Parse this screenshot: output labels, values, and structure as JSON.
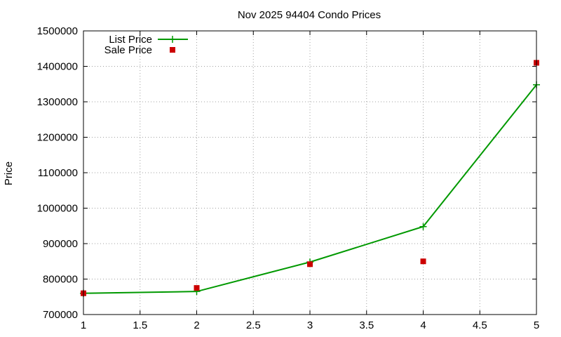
{
  "chart_data": {
    "type": "line",
    "title": "Nov 2025 94404 Condo Prices",
    "xlabel": "",
    "ylabel": "Price",
    "xlim": [
      1,
      5
    ],
    "ylim": [
      700000,
      1500000
    ],
    "x_ticks": [
      "1",
      "1.5",
      "2",
      "2.5",
      "3",
      "3.5",
      "4",
      "4.5",
      "5"
    ],
    "y_ticks": [
      "700000",
      "800000",
      "900000",
      "1000000",
      "1100000",
      "1200000",
      "1300000",
      "1400000",
      "1500000"
    ],
    "grid": true,
    "legend_position": "top-left",
    "series": [
      {
        "name": "List Price",
        "style": "line-with-plus-markers",
        "color": "#009900",
        "points": [
          {
            "x": 1,
            "y": 760000
          },
          {
            "x": 2,
            "y": 765000
          },
          {
            "x": 3,
            "y": 848000
          },
          {
            "x": 4,
            "y": 948000
          },
          {
            "x": 5,
            "y": 1348000
          }
        ]
      },
      {
        "name": "Sale Price",
        "style": "square-markers",
        "color": "#cc0000",
        "points": [
          {
            "x": 1,
            "y": 760000
          },
          {
            "x": 2,
            "y": 775000
          },
          {
            "x": 3,
            "y": 842000
          },
          {
            "x": 4,
            "y": 850000
          },
          {
            "x": 5,
            "y": 1410000
          }
        ]
      }
    ]
  }
}
